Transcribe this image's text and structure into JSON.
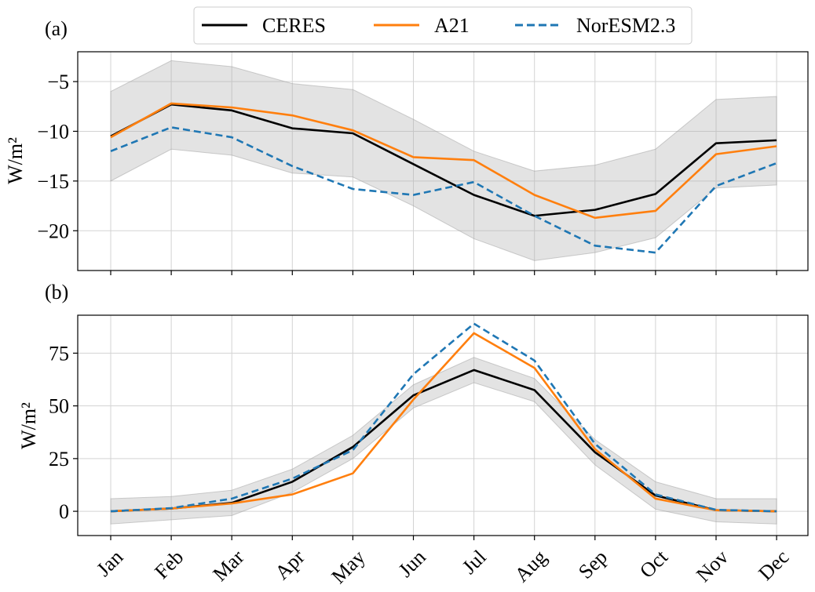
{
  "legend": {
    "entries": [
      {
        "name": "CERES",
        "color": "#000000",
        "dashed": false
      },
      {
        "name": "A21",
        "color": "#ff7f0e",
        "dashed": false
      },
      {
        "name": "NorESM2.3",
        "color": "#1f77b4",
        "dashed": true
      }
    ]
  },
  "chart_data": [
    {
      "type": "line",
      "panel_label": "(a)",
      "ylabel": "W/m²",
      "categories": [
        "Jan",
        "Feb",
        "Mar",
        "Apr",
        "May",
        "Jun",
        "Jul",
        "Aug",
        "Sep",
        "Oct",
        "Nov",
        "Dec"
      ],
      "ylim": [
        -24,
        -2
      ],
      "yticks": [
        -5,
        -10,
        -15,
        -20
      ],
      "ytick_labels": [
        "−5",
        "−10",
        "−15",
        "−20"
      ],
      "grid": true,
      "band": {
        "upper": [
          -6,
          -2.9,
          -3.5,
          -5.2,
          -5.8,
          -8.8,
          -12,
          -14,
          -13.4,
          -11.8,
          -6.8,
          -6.5
        ],
        "lower": [
          -15,
          -11.8,
          -12.4,
          -14.2,
          -14.6,
          -17.5,
          -20.8,
          -23,
          -22.2,
          -20.7,
          -15.7,
          -15.4
        ]
      },
      "series": [
        {
          "name": "CERES",
          "values": [
            -10.5,
            -7.3,
            -7.9,
            -9.7,
            -10.2,
            -13.3,
            -16.4,
            -18.5,
            -17.9,
            -16.3,
            -11.2,
            -10.9
          ]
        },
        {
          "name": "A21",
          "values": [
            -10.6,
            -7.2,
            -7.6,
            -8.4,
            -9.9,
            -12.6,
            -12.9,
            -16.4,
            -18.7,
            -18.0,
            -12.3,
            -11.5
          ]
        },
        {
          "name": "NorESM2.3",
          "values": [
            -12.0,
            -9.6,
            -10.6,
            -13.5,
            -15.8,
            -16.4,
            -15.1,
            -18.5,
            -21.5,
            -22.2,
            -15.5,
            -13.2
          ]
        }
      ]
    },
    {
      "type": "line",
      "panel_label": "(b)",
      "ylabel": "W/m²",
      "categories": [
        "Jan",
        "Feb",
        "Mar",
        "Apr",
        "May",
        "Jun",
        "Jul",
        "Aug",
        "Sep",
        "Oct",
        "Nov",
        "Dec"
      ],
      "ylim": [
        -11.5,
        93
      ],
      "yticks": [
        75,
        50,
        25,
        0
      ],
      "ytick_labels": [
        "75",
        "50",
        "25",
        "0"
      ],
      "grid": true,
      "band": {
        "upper": [
          6,
          7,
          10,
          20,
          36,
          60,
          73,
          63,
          34,
          14,
          6,
          6
        ],
        "lower": [
          -6,
          -4,
          -2,
          9,
          25,
          49,
          61,
          52,
          22,
          1,
          -5,
          -6
        ]
      },
      "series": [
        {
          "name": "CERES",
          "values": [
            0,
            1.3,
            4,
            14,
            30.5,
            55,
            67,
            57.5,
            28,
            7.5,
            0.5,
            0
          ]
        },
        {
          "name": "A21",
          "values": [
            0,
            1.3,
            3.7,
            8,
            18,
            53,
            84.5,
            68,
            29.5,
            6,
            0.5,
            0
          ]
        },
        {
          "name": "NorESM2.3",
          "values": [
            0,
            1.5,
            6,
            15.5,
            29,
            65,
            89,
            71.5,
            32,
            8,
            0.7,
            0
          ]
        }
      ]
    }
  ]
}
